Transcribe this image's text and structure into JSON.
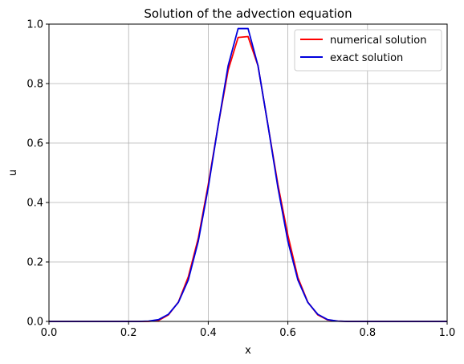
{
  "chart_data": {
    "type": "line",
    "title": "Solution of the advection equation",
    "xlabel": "x",
    "ylabel": "u",
    "xlim": [
      0.0,
      1.0
    ],
    "ylim": [
      0.0,
      1.0
    ],
    "grid": true,
    "legend_position": "top-right",
    "x_ticks": [
      "0.0",
      "0.2",
      "0.4",
      "0.6",
      "0.8",
      "1.0"
    ],
    "y_ticks": [
      "0.0",
      "0.2",
      "0.4",
      "0.6",
      "0.8",
      "1.0"
    ],
    "x": [
      0.0,
      0.025,
      0.05,
      0.075,
      0.1,
      0.125,
      0.15,
      0.175,
      0.2,
      0.225,
      0.25,
      0.275,
      0.3,
      0.325,
      0.35,
      0.375,
      0.4,
      0.425,
      0.45,
      0.475,
      0.5,
      0.525,
      0.55,
      0.575,
      0.6,
      0.625,
      0.65,
      0.675,
      0.7,
      0.725,
      0.75,
      0.775,
      0.8,
      0.825,
      0.85,
      0.875,
      0.9,
      0.925,
      0.95,
      0.975,
      1.0
    ],
    "series": [
      {
        "name": "numerical solution",
        "color": "#ff0000",
        "values": [
          0,
          0,
          0,
          0,
          0,
          0,
          0,
          0,
          0,
          0,
          0.0,
          0.003,
          0.022,
          0.065,
          0.15,
          0.28,
          0.46,
          0.66,
          0.845,
          0.955,
          0.958,
          0.86,
          0.66,
          0.46,
          0.29,
          0.148,
          0.065,
          0.022,
          0.005,
          0.001,
          0,
          0,
          0,
          0,
          0,
          0,
          0,
          0,
          0,
          0,
          0
        ]
      },
      {
        "name": "exact solution",
        "color": "#0000dd",
        "values": [
          0,
          0,
          0,
          0,
          0,
          0,
          0,
          0,
          0,
          0,
          0.001,
          0.006,
          0.024,
          0.064,
          0.14,
          0.27,
          0.45,
          0.66,
          0.86,
          0.985,
          0.985,
          0.86,
          0.66,
          0.45,
          0.27,
          0.14,
          0.064,
          0.024,
          0.006,
          0.001,
          0,
          0,
          0,
          0,
          0,
          0,
          0,
          0,
          0,
          0,
          0
        ]
      }
    ]
  }
}
